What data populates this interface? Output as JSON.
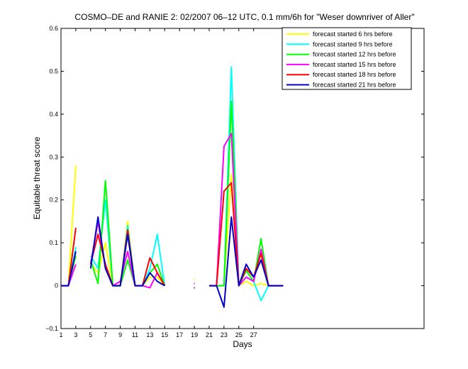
{
  "chart_data": {
    "type": "line",
    "title": "COSMO–DE and RANIE 2: 02/2007 06–12 UTC, 0.1 mm/6h for \"Weser downriver of Aller\"",
    "xlabel": "Days",
    "ylabel": "Equitable threat score",
    "xlim": [
      1,
      50
    ],
    "ylim": [
      -0.1,
      0.6
    ],
    "xticks": [
      1,
      3,
      5,
      7,
      9,
      11,
      13,
      15,
      17,
      19,
      21,
      23,
      25,
      27
    ],
    "yticks": [
      -0.1,
      0,
      0.1,
      0.2,
      0.3,
      0.4,
      0.5,
      0.6
    ],
    "ytick_labels": [
      "−0.1",
      "0",
      "0.1",
      "0.2",
      "0.3",
      "0.4",
      "0.5",
      "0.6"
    ],
    "legend_position": "top-right",
    "grid": false,
    "x": [
      1,
      2,
      3,
      4,
      5,
      6,
      7,
      8,
      9,
      10,
      11,
      12,
      13,
      14,
      15,
      16,
      17,
      18,
      19,
      20,
      21,
      22,
      23,
      24,
      25,
      26,
      27,
      28,
      29,
      30,
      31
    ],
    "series": [
      {
        "name": "forecast started 6 hrs before",
        "color": "#ffff00",
        "values": [
          0,
          0,
          0.28,
          null,
          0.05,
          0.03,
          0.1,
          0,
          0,
          0.15,
          0,
          0,
          0.02,
          0.02,
          0,
          null,
          null,
          null,
          0.015,
          null,
          0,
          0,
          0,
          0.26,
          0,
          0.01,
          0,
          0.005,
          0,
          0,
          0
        ]
      },
      {
        "name": "forecast started 9 hrs before",
        "color": "#00ffff",
        "values": [
          0,
          0,
          0.09,
          null,
          0.07,
          0.04,
          0.2,
          0,
          0,
          0.14,
          0,
          0,
          0.04,
          0.12,
          0,
          null,
          null,
          null,
          null,
          null,
          0,
          0,
          0,
          0.51,
          0,
          0.02,
          0.01,
          -0.035,
          0,
          0,
          0
        ]
      },
      {
        "name": "forecast started 12 hrs before",
        "color": "#00ff00",
        "values": [
          0,
          0,
          0.07,
          null,
          0.06,
          0.005,
          0.245,
          0,
          0,
          0.06,
          0,
          0,
          0.03,
          0.05,
          0,
          null,
          null,
          null,
          null,
          null,
          0,
          0,
          0,
          0.43,
          0,
          0.035,
          0.01,
          0.11,
          0,
          0,
          0
        ]
      },
      {
        "name": "forecast started 15 hrs before",
        "color": "#ff00ff",
        "values": [
          0,
          0,
          0.05,
          null,
          0.05,
          0.15,
          0.04,
          0,
          0.01,
          0.08,
          0,
          0,
          -0.005,
          0.03,
          0,
          null,
          null,
          null,
          0.005,
          null,
          0,
          0,
          0.325,
          0.355,
          0,
          0.02,
          0.01,
          0.085,
          0,
          0,
          0
        ]
      },
      {
        "name": "forecast started 18 hrs before",
        "color": "#ff0000",
        "values": [
          0,
          0,
          0.135,
          null,
          0.05,
          0.12,
          0.05,
          0,
          0,
          0.13,
          0,
          0,
          0.065,
          0.03,
          0,
          null,
          null,
          null,
          null,
          null,
          0,
          0,
          0.22,
          0.24,
          0,
          0.04,
          0.02,
          0.075,
          0,
          0,
          0
        ]
      },
      {
        "name": "forecast started 21 hrs before",
        "color": "#0000cc",
        "values": [
          0,
          0,
          0.08,
          null,
          0.04,
          0.16,
          0.04,
          0,
          0,
          0.12,
          0,
          0,
          0.03,
          0.01,
          0,
          null,
          null,
          null,
          -0.005,
          null,
          0,
          0,
          -0.05,
          0.16,
          0,
          0.05,
          0.02,
          0.06,
          0,
          0,
          0
        ]
      }
    ]
  }
}
